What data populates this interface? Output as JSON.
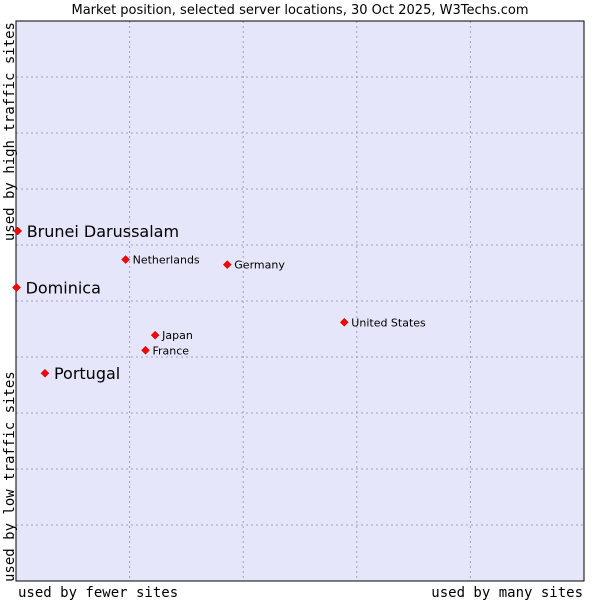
{
  "chart_data": {
    "type": "scatter",
    "title": "Market position, selected server locations, 30 Oct 2025, W3Techs.com",
    "xlabel_left": "used by fewer sites",
    "xlabel_right": "used by many sites",
    "ylabel_top": "used by high traffic sites",
    "ylabel_bottom": "used by low traffic sites",
    "xlim": [
      0,
      100
    ],
    "ylim": [
      0,
      100
    ],
    "grid": true,
    "colors": {
      "plot_bg": "#e6e6fa",
      "grid": "#a0a0c0",
      "marker": "#ff0000",
      "frame": "#000000"
    },
    "points": [
      {
        "name": "Brunei Darussalam",
        "x": 0.3,
        "y": 62.5,
        "highlight": true
      },
      {
        "name": "Dominica",
        "x": 0.1,
        "y": 52.4,
        "highlight": true
      },
      {
        "name": "Portugal",
        "x": 5.1,
        "y": 37.1,
        "highlight": true
      },
      {
        "name": "Netherlands",
        "x": 19.3,
        "y": 57.4,
        "highlight": false
      },
      {
        "name": "Germany",
        "x": 37.2,
        "y": 56.5,
        "highlight": false
      },
      {
        "name": "United States",
        "x": 57.8,
        "y": 46.2,
        "highlight": false
      },
      {
        "name": "Japan",
        "x": 24.5,
        "y": 43.9,
        "highlight": false
      },
      {
        "name": "France",
        "x": 22.8,
        "y": 41.2,
        "highlight": false
      }
    ]
  }
}
